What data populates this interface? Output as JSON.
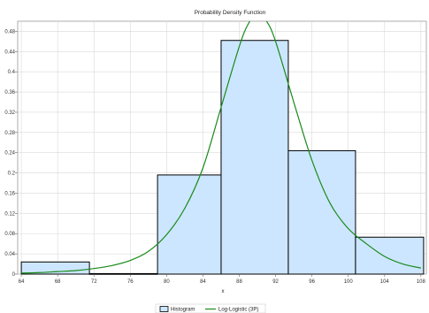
{
  "chart_data": {
    "type": "bar",
    "title": "Probability Density Function",
    "xlabel": "x",
    "ylabel": "",
    "xlim": [
      63.6,
      108.6
    ],
    "ylim": [
      0,
      0.5
    ],
    "x_ticks": [
      "64",
      "68",
      "72",
      "76",
      "80",
      "84",
      "88",
      "92",
      "96",
      "100",
      "104",
      "108"
    ],
    "y_ticks": [
      "0",
      "0.04",
      "0.08",
      "0.12",
      "0.16",
      "0.2",
      "0.24",
      "0.28",
      "0.32",
      "0.36",
      "0.4",
      "0.44",
      "0.48"
    ],
    "grid": true,
    "legend_position": "bottom",
    "series": [
      {
        "name": "Histogram",
        "kind": "histogram",
        "color": "#cce6ff",
        "edge_color": "#000000",
        "bins": [
          {
            "x0": 64.0,
            "x1": 71.5,
            "value": 0.024
          },
          {
            "x0": 71.5,
            "x1": 79.0,
            "value": 0.001
          },
          {
            "x0": 79.0,
            "x1": 86.0,
            "value": 0.196
          },
          {
            "x0": 86.0,
            "x1": 93.4,
            "value": 0.462
          },
          {
            "x0": 93.4,
            "x1": 100.8,
            "value": 0.244
          },
          {
            "x0": 100.8,
            "x1": 108.3,
            "value": 0.073
          }
        ]
      },
      {
        "name": "Log-Logistic (3P)",
        "kind": "line",
        "color": "#1a8a1a",
        "x": [
          64,
          66,
          68,
          70,
          72,
          74,
          76,
          78,
          80,
          82,
          84,
          86,
          88,
          89,
          90,
          91,
          92,
          94,
          96,
          98,
          100,
          102,
          104,
          106,
          108
        ],
        "y": [
          0.002,
          0.003,
          0.005,
          0.007,
          0.011,
          0.017,
          0.027,
          0.045,
          0.078,
          0.13,
          0.21,
          0.33,
          0.45,
          0.495,
          0.515,
          0.5,
          0.46,
          0.34,
          0.225,
          0.14,
          0.09,
          0.06,
          0.035,
          0.02,
          0.012
        ]
      }
    ]
  }
}
